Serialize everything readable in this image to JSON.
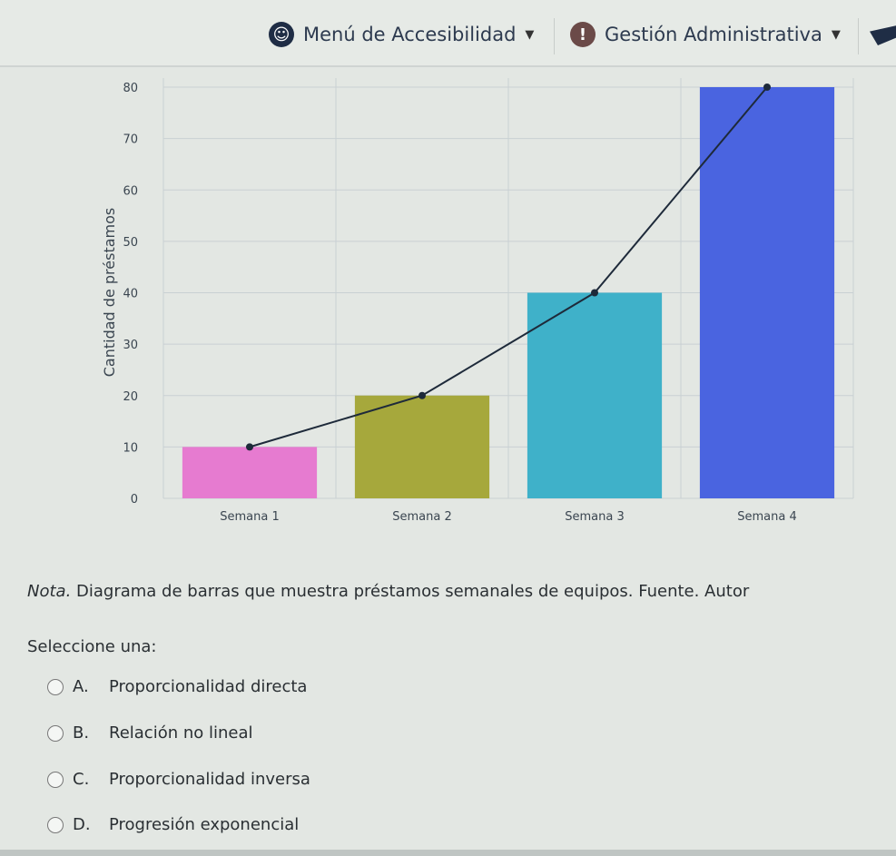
{
  "header": {
    "accessibility_menu": "Menú de Accesibilidad",
    "admin_menu": "Gestión Administrativa",
    "icons": [
      "accessibility-icon",
      "alert-icon",
      "graduation-cap-icon"
    ]
  },
  "chart_data": {
    "type": "bar",
    "categories": [
      "Semana 1",
      "Semana 2",
      "Semana 3",
      "Semana 4"
    ],
    "values": [
      10,
      20,
      40,
      80
    ],
    "bar_colors": [
      "#e67bd0",
      "#a6a83c",
      "#3fb1c9",
      "#4a64e0"
    ],
    "line_overlay": true,
    "line_color": "#1e2a3a",
    "xlabel": "",
    "ylabel": "Cantidad de préstamos",
    "ylim": [
      0,
      80
    ],
    "yticks": [
      "0",
      "10",
      "20",
      "30",
      "40",
      "50",
      "60",
      "70",
      "80"
    ],
    "grid": true
  },
  "caption": {
    "prefix": "Nota.",
    "text": " Diagrama de barras que muestra préstamos semanales de equipos. Fuente. Autor"
  },
  "question": {
    "prompt": "Seleccione una:",
    "options": [
      {
        "letter": "A.",
        "label": "Proporcionalidad directa"
      },
      {
        "letter": "B.",
        "label": "Relación no lineal"
      },
      {
        "letter": "C.",
        "label": "Proporcionalidad inversa"
      },
      {
        "letter": "D.",
        "label": "Progresión exponencial"
      }
    ]
  }
}
